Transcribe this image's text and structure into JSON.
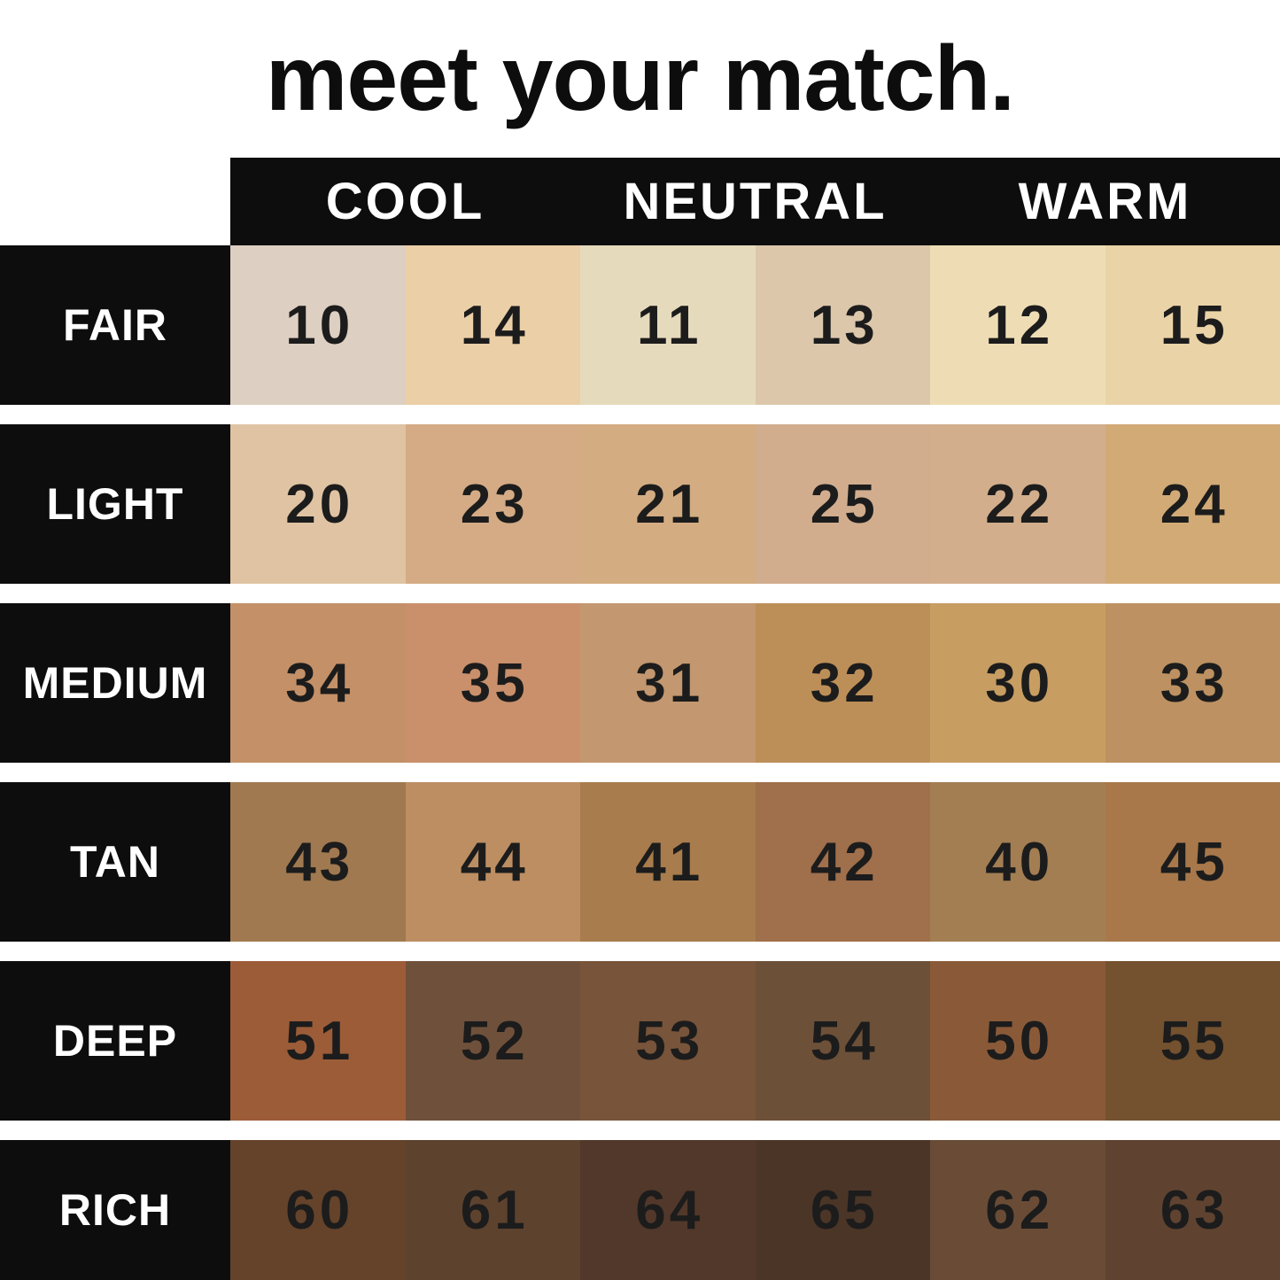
{
  "title": "meet your match.",
  "colors": {
    "page_background": "#ffffff",
    "panel_black": "#0d0d0d",
    "label_text": "#ffffff",
    "number_text": "#1c1c1c",
    "title_text": "#0d0d0d"
  },
  "chart_data": {
    "type": "table",
    "title": "meet your match.",
    "column_groups": [
      "COOL",
      "NEUTRAL",
      "WARM"
    ],
    "columns_per_group": 2,
    "row_labels": [
      "FAIR",
      "LIGHT",
      "MEDIUM",
      "TAN",
      "DEEP",
      "RICH"
    ],
    "legend_position": "top",
    "rows": [
      {
        "label": "FAIR",
        "shades": [
          {
            "number": "10",
            "undertone": "COOL",
            "color": "#ddcfc1"
          },
          {
            "number": "14",
            "undertone": "COOL",
            "color": "#ebcfa7"
          },
          {
            "number": "11",
            "undertone": "NEUTRAL",
            "color": "#e6dabc"
          },
          {
            "number": "13",
            "undertone": "NEUTRAL",
            "color": "#dcc7ab"
          },
          {
            "number": "12",
            "undertone": "WARM",
            "color": "#eeddb4"
          },
          {
            "number": "15",
            "undertone": "WARM",
            "color": "#ead3a6"
          }
        ]
      },
      {
        "label": "LIGHT",
        "shades": [
          {
            "number": "20",
            "undertone": "COOL",
            "color": "#dfc3a3"
          },
          {
            "number": "23",
            "undertone": "COOL",
            "color": "#d4ab85"
          },
          {
            "number": "21",
            "undertone": "NEUTRAL",
            "color": "#d3ac82"
          },
          {
            "number": "25",
            "undertone": "NEUTRAL",
            "color": "#d1ad8e"
          },
          {
            "number": "22",
            "undertone": "WARM",
            "color": "#d2ae8c"
          },
          {
            "number": "24",
            "undertone": "WARM",
            "color": "#d2aa76"
          }
        ]
      },
      {
        "label": "MEDIUM",
        "shades": [
          {
            "number": "34",
            "undertone": "COOL",
            "color": "#c49067"
          },
          {
            "number": "35",
            "undertone": "COOL",
            "color": "#c9906b"
          },
          {
            "number": "31",
            "undertone": "NEUTRAL",
            "color": "#c3976f"
          },
          {
            "number": "32",
            "undertone": "NEUTRAL",
            "color": "#bd8f58"
          },
          {
            "number": "30",
            "undertone": "WARM",
            "color": "#c89d62"
          },
          {
            "number": "33",
            "undertone": "WARM",
            "color": "#bd9161"
          }
        ]
      },
      {
        "label": "TAN",
        "shades": [
          {
            "number": "43",
            "undertone": "COOL",
            "color": "#a17950"
          },
          {
            "number": "44",
            "undertone": "COOL",
            "color": "#bc8e62"
          },
          {
            "number": "41",
            "undertone": "NEUTRAL",
            "color": "#a87c4c"
          },
          {
            "number": "42",
            "undertone": "NEUTRAL",
            "color": "#a06f4b"
          },
          {
            "number": "40",
            "undertone": "WARM",
            "color": "#a37e53"
          },
          {
            "number": "45",
            "undertone": "WARM",
            "color": "#a8784a"
          }
        ]
      },
      {
        "label": "DEEP",
        "shades": [
          {
            "number": "51",
            "undertone": "COOL",
            "color": "#9c5c38"
          },
          {
            "number": "52",
            "undertone": "COOL",
            "color": "#6f513b"
          },
          {
            "number": "53",
            "undertone": "NEUTRAL",
            "color": "#78543a"
          },
          {
            "number": "54",
            "undertone": "NEUTRAL",
            "color": "#6d5038"
          },
          {
            "number": "50",
            "undertone": "WARM",
            "color": "#8a5a38"
          },
          {
            "number": "55",
            "undertone": "WARM",
            "color": "#74512f"
          }
        ]
      },
      {
        "label": "RICH",
        "shades": [
          {
            "number": "60",
            "undertone": "COOL",
            "color": "#64432a"
          },
          {
            "number": "61",
            "undertone": "COOL",
            "color": "#5d422e"
          },
          {
            "number": "64",
            "undertone": "NEUTRAL",
            "color": "#52382a"
          },
          {
            "number": "65",
            "undertone": "NEUTRAL",
            "color": "#4b3527"
          },
          {
            "number": "62",
            "undertone": "WARM",
            "color": "#6a4c36"
          },
          {
            "number": "63",
            "undertone": "WARM",
            "color": "#5f4330"
          }
        ]
      }
    ]
  }
}
